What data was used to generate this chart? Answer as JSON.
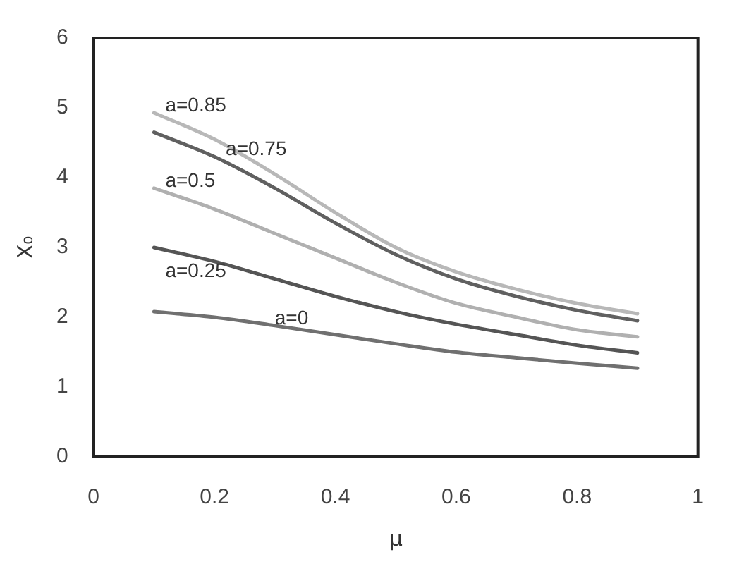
{
  "chart_data": {
    "type": "line",
    "xlabel": "μ",
    "ylabel": "X₀",
    "x": [
      0.1,
      0.2,
      0.3,
      0.4,
      0.5,
      0.6,
      0.7,
      0.8,
      0.9
    ],
    "xlim": [
      0,
      1
    ],
    "xticks": [
      0,
      0.2,
      0.4,
      0.6,
      0.8,
      1
    ],
    "ylim": [
      0,
      6
    ],
    "yticks": [
      0,
      1,
      2,
      3,
      4,
      5,
      6
    ],
    "grid": false,
    "legend": false,
    "marker": "none",
    "line_style": "solid",
    "series": [
      {
        "name": "a=0.85",
        "color": "#b8b8b8",
        "values": [
          4.93,
          4.55,
          4.05,
          3.5,
          3.0,
          2.65,
          2.4,
          2.2,
          2.05
        ]
      },
      {
        "name": "a=0.75",
        "color": "#606060",
        "values": [
          4.65,
          4.3,
          3.85,
          3.35,
          2.9,
          2.55,
          2.3,
          2.1,
          1.95
        ]
      },
      {
        "name": "a=0.5",
        "color": "#b0b0b0",
        "values": [
          3.85,
          3.55,
          3.2,
          2.85,
          2.5,
          2.2,
          2.0,
          1.82,
          1.72
        ]
      },
      {
        "name": "a=0.25",
        "color": "#555555",
        "values": [
          3.0,
          2.8,
          2.55,
          2.3,
          2.08,
          1.9,
          1.75,
          1.6,
          1.49
        ]
      },
      {
        "name": "a=0",
        "color": "#707070",
        "values": [
          2.08,
          2.0,
          1.88,
          1.75,
          1.62,
          1.5,
          1.42,
          1.34,
          1.27
        ]
      }
    ]
  }
}
